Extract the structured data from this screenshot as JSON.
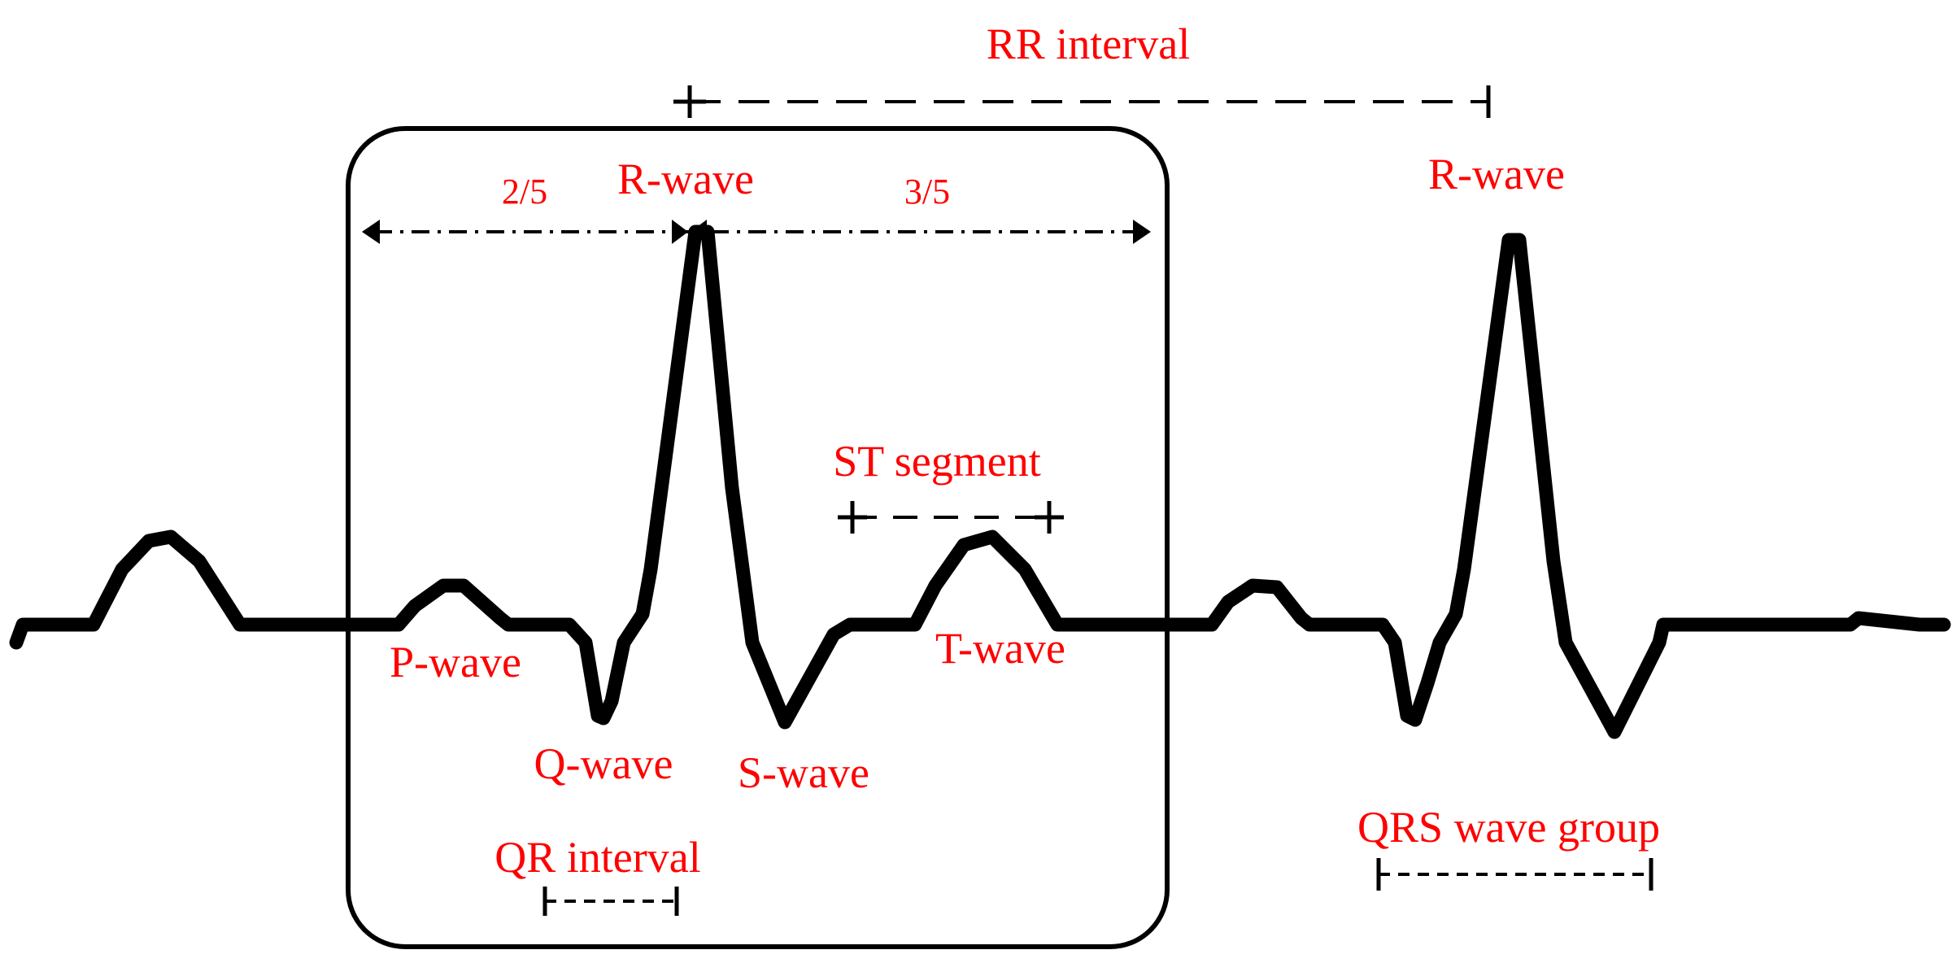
{
  "labels": {
    "rr_interval": "RR interval",
    "r_wave_left": "R-wave",
    "r_wave_right": "R-wave",
    "fraction_left": "2/5",
    "fraction_right": "3/5",
    "st_segment": "ST segment",
    "p_wave": "P-wave",
    "t_wave": "T-wave",
    "q_wave": "Q-wave",
    "s_wave": "S-wave",
    "qr_interval": "QR interval",
    "qrs_wave_group": "QRS wave group"
  },
  "colors": {
    "label": "#ff0000",
    "trace": "#000000",
    "background": "#ffffff"
  }
}
